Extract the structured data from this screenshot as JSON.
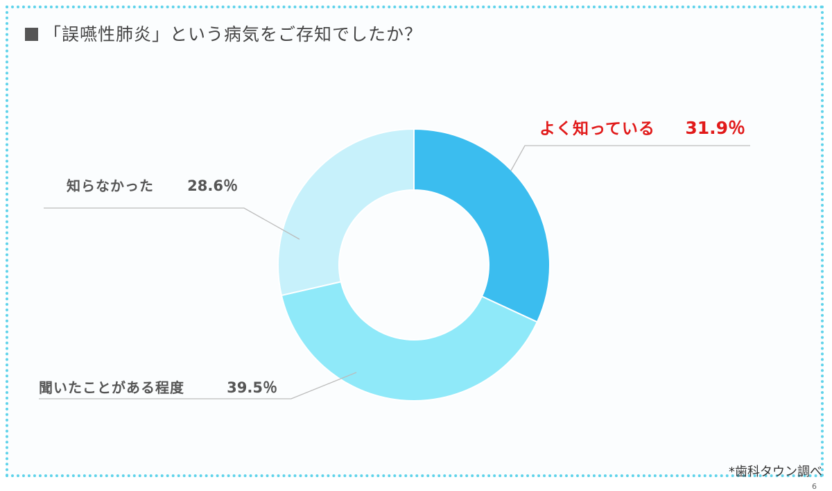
{
  "title": "「誤嚥性肺炎」という病気をご存知でしたか？",
  "source": "*歯科タウン調べ",
  "page_number": "6",
  "chart_data": {
    "type": "pie",
    "variant": "donut",
    "title": "「誤嚥性肺炎」という病気をご存知でしたか？",
    "categories": [
      "よく知っている",
      "聞いたことがある程度",
      "知らなかった"
    ],
    "values": [
      31.9,
      39.5,
      28.6
    ],
    "value_labels": [
      "31.9％",
      "39.5％",
      "28.6％"
    ],
    "colors": [
      "#3bbdef",
      "#8fe9f9",
      "#c7f1fb"
    ],
    "label_colors": [
      "#e11a1a",
      "#555555",
      "#555555"
    ],
    "start_angle": "12 o'clock",
    "direction": "clockwise"
  }
}
